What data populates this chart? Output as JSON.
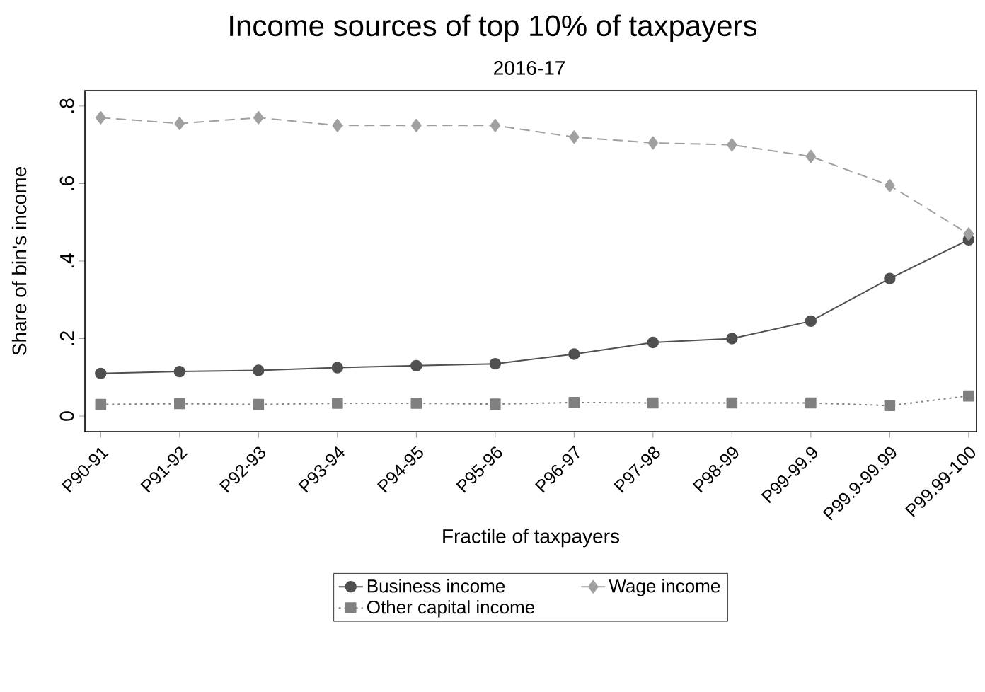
{
  "chart_data": {
    "type": "line",
    "title": "Income sources of top 10% of taxpayers",
    "subtitle": "2016-17",
    "xlabel": "Fractile of taxpayers",
    "ylabel": "Share of bin's income",
    "categories": [
      "P90-91",
      "P91-92",
      "P92-93",
      "P93-94",
      "P94-95",
      "P95-96",
      "P96-97",
      "P97-98",
      "P98-99",
      "P99-99.9",
      "P99.9-99.99",
      "P99.99-100"
    ],
    "series": [
      {
        "name": "Business income",
        "color": "#505050",
        "marker": "circle",
        "line_style": "solid",
        "values": [
          0.11,
          0.115,
          0.118,
          0.125,
          0.13,
          0.135,
          0.16,
          0.19,
          0.2,
          0.245,
          0.355,
          0.455
        ]
      },
      {
        "name": "Wage income",
        "color": "#a0a0a0",
        "marker": "diamond",
        "line_style": "dashed",
        "values": [
          0.77,
          0.755,
          0.77,
          0.75,
          0.75,
          0.75,
          0.72,
          0.705,
          0.7,
          0.67,
          0.595,
          0.47
        ]
      },
      {
        "name": "Other capital income",
        "color": "#808080",
        "marker": "square",
        "line_style": "dotted",
        "values": [
          0.03,
          0.032,
          0.03,
          0.033,
          0.033,
          0.031,
          0.035,
          0.034,
          0.034,
          0.034,
          0.027,
          0.052
        ]
      }
    ],
    "ylim": [
      -0.04,
      0.84
    ],
    "yticks": [
      {
        "value": 0,
        "label": "0"
      },
      {
        "value": 0.2,
        "label": ".2"
      },
      {
        "value": 0.4,
        "label": ".4"
      },
      {
        "value": 0.6,
        "label": ".6"
      },
      {
        "value": 0.8,
        "label": ".8"
      }
    ],
    "grid": false,
    "legend": "bottom"
  }
}
